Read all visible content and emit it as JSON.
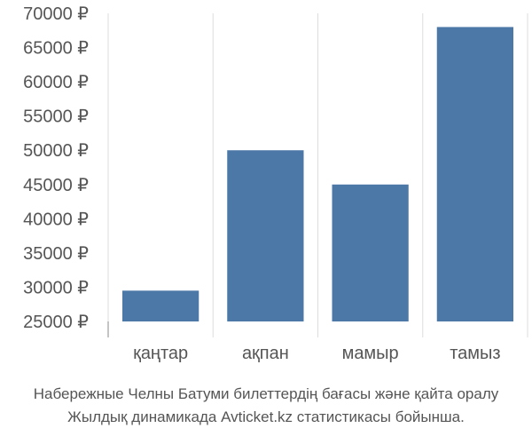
{
  "chart_data": {
    "type": "bar",
    "categories": [
      "қаңтар",
      "ақпан",
      "мамыр",
      "тамыз"
    ],
    "values": [
      29500,
      50000,
      45000,
      68000
    ],
    "ylim": [
      25000,
      70000
    ],
    "yticks": [
      25000,
      30000,
      35000,
      40000,
      45000,
      50000,
      55000,
      60000,
      65000,
      70000
    ],
    "y_tick_labels": [
      "25000 ₽",
      "30000 ₽",
      "35000 ₽",
      "40000 ₽",
      "45000 ₽",
      "50000 ₽",
      "55000 ₽",
      "60000 ₽",
      "65000 ₽",
      "70000 ₽"
    ],
    "grid": "vertical",
    "bar_color": "#4c78a8",
    "grid_color": "#dddddd",
    "text_color": "#555555"
  },
  "caption": {
    "line1": "Набережные Челны Батуми билеттердің бағасы және қайта оралу",
    "line2": "Жылдық динамикада Avticket.kz статистикасы бойынша."
  }
}
